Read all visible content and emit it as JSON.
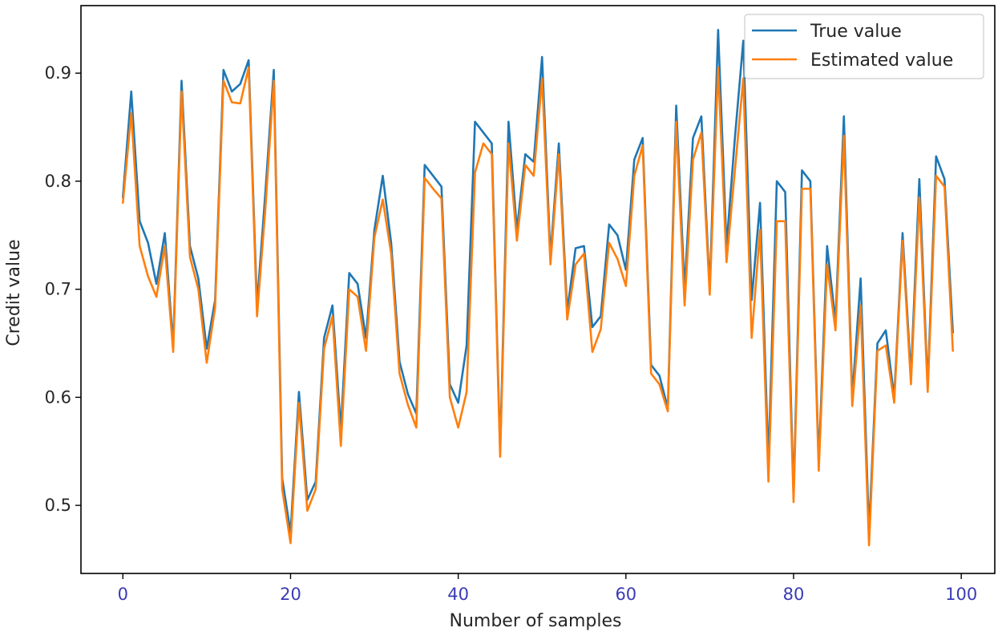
{
  "chart_data": {
    "type": "line",
    "title": "",
    "xlabel": "Number of samples",
    "ylabel": "Credit value",
    "xlim": [
      -5,
      104
    ],
    "ylim": [
      0.437,
      0.9625
    ],
    "xticks": [
      0,
      20,
      40,
      60,
      80,
      100
    ],
    "xtick_labels": [
      "0",
      "20",
      "40",
      "60",
      "80",
      "100"
    ],
    "yticks": [
      0.5,
      0.6,
      0.7,
      0.8,
      0.9
    ],
    "ytick_labels": [
      "0.5",
      "0.6",
      "0.7",
      "0.8",
      "0.9"
    ],
    "grid": false,
    "legend_position": "top-right",
    "series": [
      {
        "name": "True value",
        "color": "#1f77b4",
        "x": [
          0,
          1,
          2,
          3,
          4,
          5,
          6,
          7,
          8,
          9,
          10,
          11,
          12,
          13,
          14,
          15,
          16,
          17,
          18,
          19,
          20,
          21,
          22,
          23,
          24,
          25,
          26,
          27,
          28,
          29,
          30,
          31,
          32,
          33,
          34,
          35,
          36,
          37,
          38,
          39,
          40,
          41,
          42,
          43,
          44,
          45,
          46,
          47,
          48,
          49,
          50,
          51,
          52,
          53,
          54,
          55,
          56,
          57,
          58,
          59,
          60,
          61,
          62,
          63,
          64,
          65,
          66,
          67,
          68,
          69,
          70,
          71,
          72,
          73,
          74,
          75,
          76,
          77,
          78,
          79,
          80,
          81,
          82,
          83,
          84,
          85,
          86,
          87,
          88,
          89,
          90,
          91,
          92,
          93,
          94,
          95,
          96,
          97,
          98,
          99
        ],
        "values": [
          0.785,
          0.883,
          0.763,
          0.743,
          0.705,
          0.752,
          0.648,
          0.893,
          0.74,
          0.71,
          0.645,
          0.69,
          0.903,
          0.883,
          0.89,
          0.912,
          0.685,
          0.79,
          0.903,
          0.525,
          0.475,
          0.605,
          0.505,
          0.522,
          0.655,
          0.685,
          0.57,
          0.715,
          0.705,
          0.655,
          0.755,
          0.805,
          0.743,
          0.633,
          0.603,
          0.585,
          0.815,
          0.805,
          0.795,
          0.612,
          0.595,
          0.648,
          0.855,
          0.845,
          0.835,
          0.55,
          0.855,
          0.755,
          0.825,
          0.818,
          0.915,
          0.73,
          0.835,
          0.68,
          0.738,
          0.74,
          0.665,
          0.675,
          0.76,
          0.75,
          0.718,
          0.82,
          0.84,
          0.63,
          0.62,
          0.59,
          0.87,
          0.7,
          0.84,
          0.86,
          0.7,
          0.94,
          0.74,
          0.84,
          0.93,
          0.69,
          0.78,
          0.54,
          0.8,
          0.79,
          0.51,
          0.81,
          0.8,
          0.54,
          0.74,
          0.67,
          0.86,
          0.6,
          0.71,
          0.475,
          0.65,
          0.662,
          0.6,
          0.752,
          0.62,
          0.802,
          0.61,
          0.823,
          0.802,
          0.66
        ]
      },
      {
        "name": "Estimated value",
        "color": "#ff7f0e",
        "x": [
          0,
          1,
          2,
          3,
          4,
          5,
          6,
          7,
          8,
          9,
          10,
          11,
          12,
          13,
          14,
          15,
          16,
          17,
          18,
          19,
          20,
          21,
          22,
          23,
          24,
          25,
          26,
          27,
          28,
          29,
          30,
          31,
          32,
          33,
          34,
          35,
          36,
          37,
          38,
          39,
          40,
          41,
          42,
          43,
          44,
          45,
          46,
          47,
          48,
          49,
          50,
          51,
          52,
          53,
          54,
          55,
          56,
          57,
          58,
          59,
          60,
          61,
          62,
          63,
          64,
          65,
          66,
          67,
          68,
          69,
          70,
          71,
          72,
          73,
          74,
          75,
          76,
          77,
          78,
          79,
          80,
          81,
          82,
          83,
          84,
          85,
          86,
          87,
          88,
          89,
          90,
          91,
          92,
          93,
          94,
          95,
          96,
          97,
          98,
          99
        ],
        "values": [
          0.78,
          0.863,
          0.74,
          0.712,
          0.693,
          0.74,
          0.642,
          0.883,
          0.73,
          0.7,
          0.632,
          0.683,
          0.893,
          0.873,
          0.872,
          0.905,
          0.675,
          0.775,
          0.893,
          0.515,
          0.465,
          0.595,
          0.495,
          0.515,
          0.645,
          0.675,
          0.555,
          0.7,
          0.693,
          0.643,
          0.748,
          0.783,
          0.733,
          0.622,
          0.593,
          0.572,
          0.803,
          0.793,
          0.784,
          0.6,
          0.572,
          0.605,
          0.808,
          0.835,
          0.825,
          0.545,
          0.835,
          0.745,
          0.815,
          0.805,
          0.895,
          0.723,
          0.825,
          0.672,
          0.723,
          0.733,
          0.642,
          0.663,
          0.743,
          0.728,
          0.703,
          0.805,
          0.833,
          0.622,
          0.612,
          0.587,
          0.855,
          0.685,
          0.82,
          0.845,
          0.695,
          0.905,
          0.725,
          0.81,
          0.895,
          0.655,
          0.755,
          0.522,
          0.763,
          0.763,
          0.503,
          0.793,
          0.793,
          0.532,
          0.723,
          0.662,
          0.842,
          0.592,
          0.685,
          0.463,
          0.643,
          0.648,
          0.595,
          0.745,
          0.612,
          0.785,
          0.605,
          0.805,
          0.795,
          0.643
        ]
      }
    ]
  }
}
